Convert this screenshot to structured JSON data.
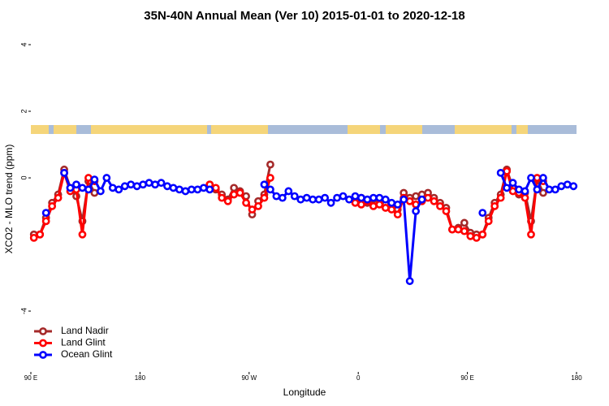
{
  "chart_data": {
    "type": "line",
    "title": "35N-40N Annual Mean (Ver 10)   2015-01-01 to 2020-12-18",
    "x_label": "Longitude",
    "y_label": "XCO2 - MLO trend (ppm)",
    "xlim": [
      90,
      540
    ],
    "xticks": [
      {
        "value": 90,
        "label": "90 E"
      },
      {
        "value": 180,
        "label": "180"
      },
      {
        "value": 270,
        "label": "90 W"
      },
      {
        "value": 360,
        "label": "0"
      },
      {
        "value": 450,
        "label": "90 E"
      },
      {
        "value": 540,
        "label": "180"
      }
    ],
    "ylim": [
      -5.9,
      4.4
    ],
    "yticks": [
      -4,
      0,
      2,
      4
    ],
    "legend": "bottom-left",
    "series": [
      {
        "name": "Land Nadir",
        "color": "#a52a2a",
        "x": [
          92.5,
          97.5,
          102.5,
          107.5,
          112.5,
          117.5,
          122.5,
          127.5,
          132.5,
          137.5,
          142.5,
          147.5,
          237.5,
          242.5,
          247.5,
          252.5,
          257.5,
          262.5,
          267.5,
          272.5,
          277.5,
          282.5,
          287.5,
          292.5,
          357.5,
          362.5,
          367.5,
          372.5,
          377.5,
          382.5,
          387.5,
          392.5,
          397.5,
          402.5,
          407.5,
          412.5,
          417.5,
          422.5,
          427.5,
          432.5,
          437.5,
          442.5,
          447.5,
          452.5,
          457.5,
          462.5,
          467.5,
          472.5,
          477.5,
          482.5,
          487.5,
          492.5,
          497.5,
          502.5,
          507.5,
          512.5
        ],
        "values": [
          -1.7,
          -1.7,
          -1.2,
          -0.75,
          -0.5,
          0.25,
          -0.3,
          -0.55,
          -1.3,
          -0.1,
          -0.45,
          null,
          -0.2,
          -0.35,
          -0.5,
          -0.65,
          -0.3,
          -0.4,
          -0.55,
          -1.1,
          -0.7,
          -0.5,
          0.4,
          null,
          -0.7,
          -0.6,
          -0.75,
          -0.65,
          -0.7,
          -0.8,
          -0.85,
          -0.95,
          -0.45,
          -0.6,
          -0.55,
          -0.5,
          -0.45,
          -0.6,
          -0.75,
          -0.9,
          -1.55,
          -1.5,
          -1.35,
          -1.65,
          -1.7,
          -1.7,
          -1.2,
          -0.75,
          -0.5,
          0.25,
          -0.3,
          -0.5,
          -0.45,
          -1.3,
          -0.05,
          -0.45
        ]
      },
      {
        "name": "Land Glint",
        "color": "#ff0000",
        "x": [
          92.5,
          97.5,
          102.5,
          107.5,
          112.5,
          117.5,
          122.5,
          127.5,
          132.5,
          137.5,
          142.5,
          147.5,
          237.5,
          242.5,
          247.5,
          252.5,
          257.5,
          262.5,
          267.5,
          272.5,
          277.5,
          282.5,
          287.5,
          292.5,
          357.5,
          362.5,
          367.5,
          372.5,
          377.5,
          382.5,
          387.5,
          392.5,
          397.5,
          402.5,
          407.5,
          412.5,
          417.5,
          422.5,
          427.5,
          432.5,
          437.5,
          442.5,
          447.5,
          452.5,
          457.5,
          462.5,
          467.5,
          472.5,
          477.5,
          482.5,
          487.5,
          492.5,
          497.5,
          502.5,
          507.5,
          512.5
        ],
        "values": [
          -1.8,
          -1.7,
          -1.3,
          -0.85,
          -0.6,
          0.15,
          -0.4,
          -0.35,
          -1.7,
          0,
          -0.1,
          null,
          -0.2,
          -0.3,
          -0.6,
          -0.7,
          -0.5,
          -0.45,
          -0.75,
          -0.95,
          -0.85,
          -0.6,
          0,
          null,
          -0.75,
          -0.8,
          -0.7,
          -0.85,
          -0.8,
          -0.9,
          -0.95,
          -1.1,
          -0.6,
          -0.7,
          -0.8,
          -0.7,
          -0.6,
          -0.7,
          -0.85,
          -1.0,
          -1.55,
          -1.55,
          -1.6,
          -1.75,
          -1.8,
          -1.7,
          -1.3,
          -0.85,
          -0.6,
          0.2,
          -0.4,
          -0.45,
          -0.6,
          -1.7,
          0,
          -0.1
        ]
      },
      {
        "name": "Ocean Glint",
        "color": "#0000ff",
        "x": [
          102.5,
          107.5,
          117.5,
          122.5,
          127.5,
          132.5,
          137.5,
          142.5,
          147.5,
          152.5,
          157.5,
          162.5,
          167.5,
          172.5,
          177.5,
          182.5,
          187.5,
          192.5,
          197.5,
          202.5,
          207.5,
          212.5,
          217.5,
          222.5,
          227.5,
          232.5,
          237.5,
          242.5,
          282.5,
          287.5,
          292.5,
          297.5,
          302.5,
          307.5,
          312.5,
          317.5,
          322.5,
          327.5,
          332.5,
          337.5,
          342.5,
          347.5,
          352.5,
          357.5,
          362.5,
          367.5,
          372.5,
          377.5,
          382.5,
          387.5,
          392.5,
          397.5,
          402.5,
          407.5,
          412.5,
          417.5,
          462.5,
          467.5,
          477.5,
          482.5,
          487.5,
          492.5,
          497.5,
          502.5,
          507.5,
          512.5,
          517.5,
          522.5,
          527.5,
          532.5,
          537.5
        ],
        "values": [
          -1.05,
          null,
          0.15,
          -0.3,
          -0.2,
          -0.3,
          -0.35,
          -0.05,
          -0.4,
          0,
          -0.3,
          -0.35,
          -0.25,
          -0.2,
          -0.25,
          -0.2,
          -0.15,
          -0.2,
          -0.15,
          -0.25,
          -0.3,
          -0.35,
          -0.4,
          -0.35,
          -0.35,
          -0.3,
          -0.35,
          null,
          -0.2,
          -0.35,
          -0.55,
          -0.6,
          -0.4,
          -0.55,
          -0.65,
          -0.6,
          -0.65,
          -0.65,
          -0.6,
          -0.75,
          -0.6,
          -0.55,
          -0.65,
          -0.55,
          -0.6,
          -0.65,
          -0.6,
          -0.6,
          -0.65,
          -0.75,
          -0.8,
          -0.65,
          -3.1,
          -1.0,
          -0.65,
          null,
          -1.05,
          null,
          0.15,
          -0.3,
          -0.15,
          -0.35,
          -0.4,
          0,
          -0.35,
          0,
          -0.35,
          -0.35,
          -0.25,
          -0.2,
          -0.25
        ]
      }
    ]
  }
}
